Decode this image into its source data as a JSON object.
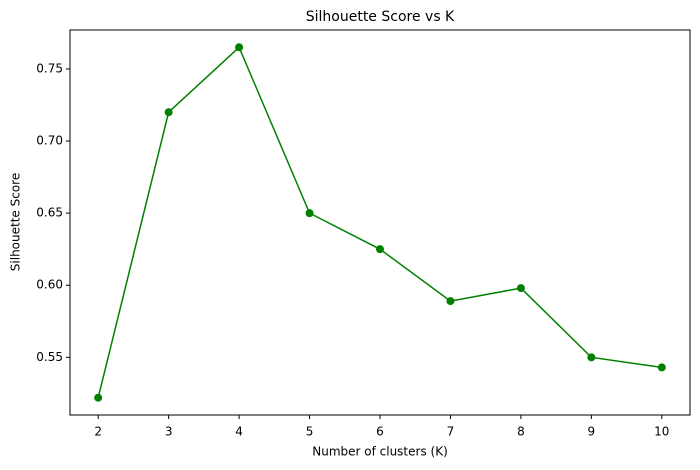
{
  "chart_data": {
    "type": "line",
    "title": "Silhouette Score vs K",
    "xlabel": "Number of clusters (K)",
    "ylabel": "Silhouette Score",
    "x": [
      2,
      3,
      4,
      5,
      6,
      7,
      8,
      9,
      10
    ],
    "series": [
      {
        "color": "#008000",
        "values": [
          0.522,
          0.72,
          0.765,
          0.65,
          0.625,
          0.589,
          0.598,
          0.55,
          0.543
        ]
      }
    ],
    "xlim": [
      1.6,
      10.4
    ],
    "xticks": [
      2,
      3,
      4,
      5,
      6,
      7,
      8,
      9,
      10
    ],
    "ylim": [
      0.51,
      0.777
    ],
    "yticks": [
      0.55,
      {
        "value": 0.6,
        "label": "0.60"
      },
      0.65,
      {
        "value": 0.7,
        "label": "0.70"
      },
      0.75
    ],
    "marker": "o",
    "grid": false
  }
}
